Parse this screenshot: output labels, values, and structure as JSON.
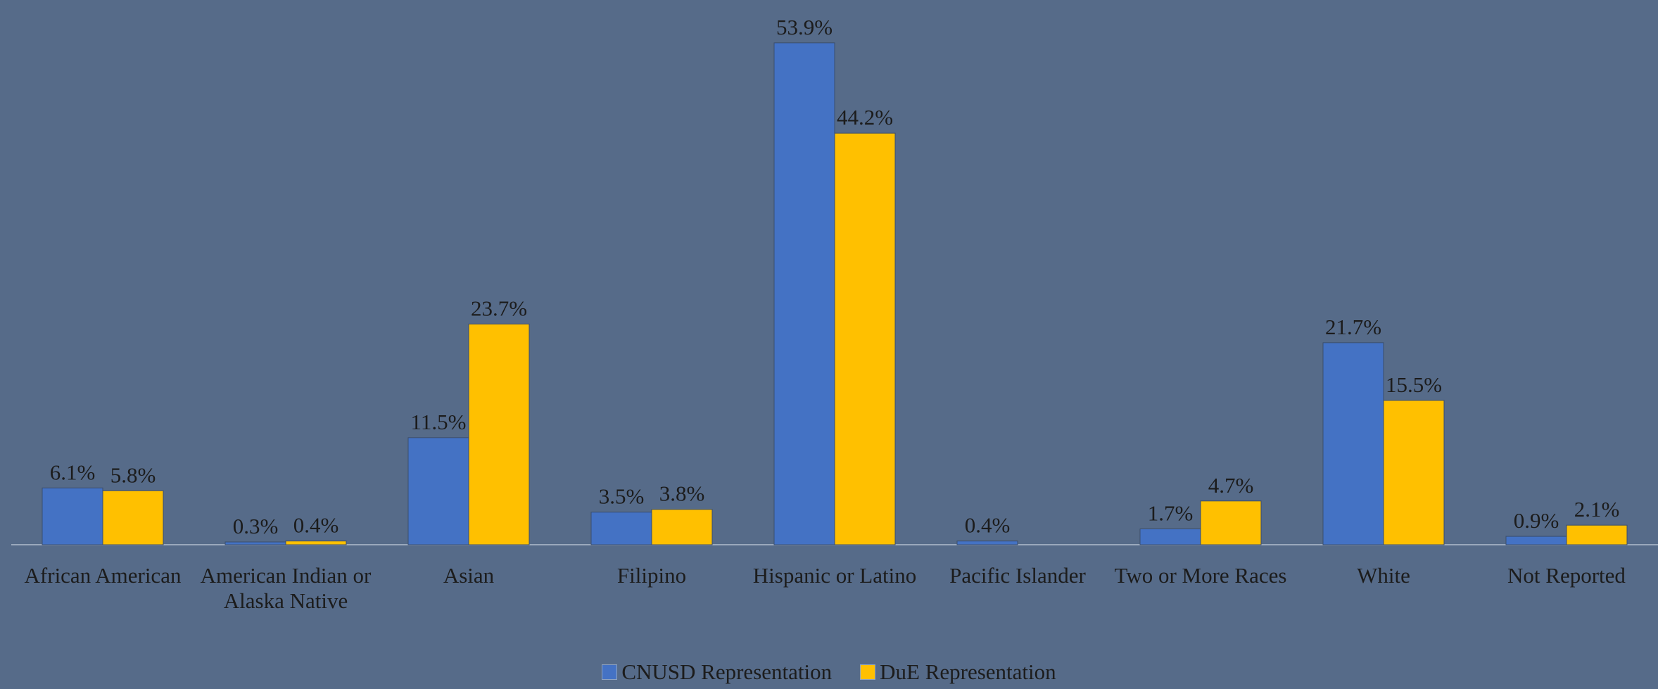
{
  "chart_data": {
    "type": "bar",
    "categories": [
      "African American",
      "American Indian or Alaska Native",
      "Asian",
      "Filipino",
      "Hispanic or Latino",
      "Pacific Islander",
      "Two or More Races",
      "White",
      "Not Reported"
    ],
    "series": [
      {
        "name": "CNUSD Representation",
        "color": "#4472c4",
        "values": [
          6.1,
          0.3,
          11.5,
          3.5,
          53.9,
          0.4,
          1.7,
          21.7,
          0.9
        ],
        "value_labels": [
          "6.1%",
          "0.3%",
          "11.5%",
          "3.5%",
          "53.9%",
          "0.4%",
          "1.7%",
          "21.7%",
          "0.9%"
        ]
      },
      {
        "name": "DuE Representation",
        "color": "#ffc000",
        "values": [
          5.8,
          0.4,
          23.7,
          3.8,
          44.2,
          null,
          4.7,
          15.5,
          2.1
        ],
        "value_labels": [
          "5.8%",
          "0.4%",
          "23.7%",
          "3.8%",
          "44.2%",
          null,
          "4.7%",
          "15.5%",
          "2.1%"
        ]
      }
    ],
    "ylim": [
      0,
      58.5
    ]
  }
}
